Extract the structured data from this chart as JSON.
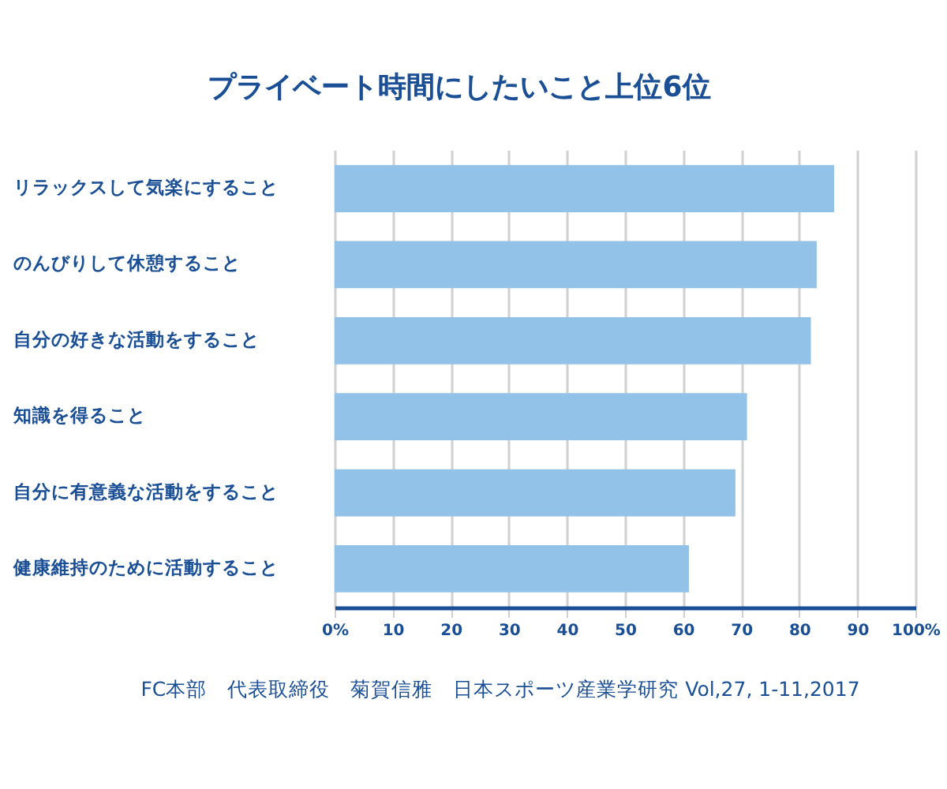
{
  "chart_data": {
    "type": "bar",
    "orientation": "horizontal",
    "title": "プライベート時間にしたいこと上位6位",
    "categories": [
      "リラックスして気楽にすること",
      "のんびりして休憩すること",
      "自分の好きな活動をすること",
      "知識を得ること",
      "自分に有意義な活動をすること",
      "健康維持のために活動すること"
    ],
    "values": [
      86,
      83,
      82,
      71,
      69,
      61
    ],
    "color": "#93c2e8",
    "xlim": [
      0,
      100
    ],
    "xticks": [
      {
        "value": 0,
        "label": "0%"
      },
      10,
      20,
      30,
      40,
      50,
      60,
      70,
      80,
      90,
      {
        "value": 100,
        "label": "100%"
      }
    ],
    "grid": "x",
    "annotations": [
      "FC本部　代表取締役　菊賀信雅　日本スポーツ産業学研究 Vol,27, 1-11,2017"
    ]
  }
}
